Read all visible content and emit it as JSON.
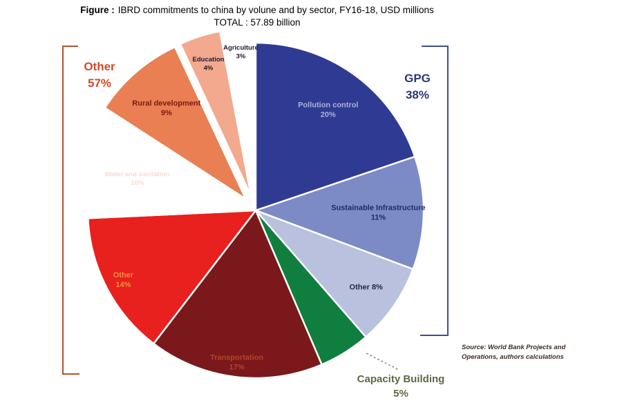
{
  "title": {
    "figure_label": "Figure :",
    "text": "IBRD commitments to china by volune and by sector, FY16-18, USD millions",
    "total": "TOTAL : 57.89 billion"
  },
  "annotations": {
    "other_group": {
      "label": "Other",
      "pct": "57%",
      "color": "#D2492A",
      "bracket_color": "#B5502F"
    },
    "gpg_group": {
      "label": "GPG",
      "pct": "38%",
      "color": "#2B3876",
      "bracket_color": "#3C4C96"
    },
    "capacity_group": {
      "label": "Capacity Building",
      "pct": "5%",
      "color": "#5C6B44",
      "leader_color": "#8A8A72"
    }
  },
  "source": {
    "line1": "Source: World Bank Projects and",
    "line2": "Operations, authors calculations"
  },
  "chart_data": {
    "type": "pie",
    "title": "IBRD commitments to china by volune and by sector, FY16-18, USD millions",
    "subtitle": "TOTAL : 57.89 billion",
    "direction": "clockwise",
    "start_angle_deg": 0,
    "center": [
      370,
      305
    ],
    "radius": 243,
    "slices": [
      {
        "name": "Pollution control",
        "pct": 20,
        "color": "#2F3B92",
        "explode": 0,
        "label": {
          "lines": [
            "Pollution control",
            "20%"
          ],
          "color": "#ABB2D9",
          "r": 0.74,
          "size": 11
        }
      },
      {
        "name": "Sustainable Infrastructure",
        "pct": 11,
        "color": "#7C8AC5",
        "explode": 0,
        "label": {
          "lines": [
            "Sustainable Infrastructure",
            "11%"
          ],
          "color": "#1E2A6B",
          "r": 0.73,
          "size": 11
        }
      },
      {
        "name": "Other (GPG)",
        "pct": 8,
        "color": "#B9C1DF",
        "explode": 0,
        "label": {
          "lines": [
            "Other 8%"
          ],
          "color": "#26264A",
          "r": 0.8,
          "size": 11
        }
      },
      {
        "name": "Capacity Building",
        "pct": 5,
        "color": "#107E3E",
        "explode": 0,
        "label": null
      },
      {
        "name": "Transportation",
        "pct": 17,
        "color": "#7A181B",
        "explode": 0,
        "label": {
          "lines": [
            "Transportation",
            "17%"
          ],
          "color": "#B5432F",
          "r": 0.91,
          "size": 11
        }
      },
      {
        "name": "Other",
        "pct": 14,
        "color": "#E8201E",
        "explode": 0,
        "label": {
          "lines": [
            "Other",
            "14%"
          ],
          "color": "#E8923C",
          "r": 0.89,
          "size": 11
        }
      },
      {
        "name": "Water and sanitation",
        "pct": 10,
        "color": "#FFFFFF",
        "explode": 0,
        "label": {
          "lines": [
            "Water and sanitation",
            "10%"
          ],
          "color": "#F6DCD0",
          "r": 0.73,
          "size": 9.5
        }
      },
      {
        "name": "Rural development",
        "pct": 9,
        "color": "#E97F52",
        "explode": 22,
        "label": {
          "lines": [
            "Rural development",
            "9%"
          ],
          "color": "#7B1A10",
          "r": 0.72,
          "size": 11
        }
      },
      {
        "name": "Education",
        "pct": 4,
        "color": "#F2A98D",
        "explode": 22,
        "label": {
          "lines": [
            "Education",
            "4%"
          ],
          "color": "#1B1B33",
          "r": 0.83,
          "size": 9.5
        }
      },
      {
        "name": "Agriculture",
        "pct": 3,
        "color": "#FFFFFF",
        "explode": 22,
        "label": {
          "lines": [
            "Agriculture",
            "3%"
          ],
          "color": "#1B1B33",
          "r": 0.86,
          "size": 9.5
        }
      }
    ],
    "groups": [
      {
        "label": "GPG",
        "pct": 38,
        "members": [
          "Pollution control",
          "Sustainable Infrastructure",
          "Other (GPG)"
        ]
      },
      {
        "label": "Other",
        "pct": 57,
        "members": [
          "Transportation",
          "Other",
          "Water and sanitation",
          "Rural development",
          "Education",
          "Agriculture"
        ]
      },
      {
        "label": "Capacity Building",
        "pct": 5,
        "members": [
          "Capacity Building"
        ]
      }
    ],
    "legend": "none",
    "grid": false
  }
}
